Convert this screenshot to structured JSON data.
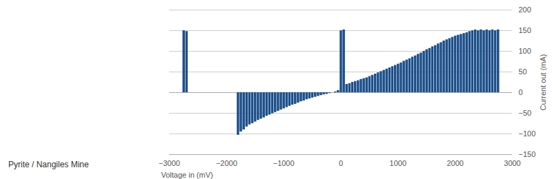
{
  "chart_data": {
    "type": "bar",
    "xlabel": "Voltage in (mV)",
    "ylabel": "Current out (mA)",
    "annotations": [
      "Pyrite / Nangiles Mine"
    ],
    "color": "#1c4f8a",
    "xlim": [
      -3000,
      3000
    ],
    "ylim": [
      -150,
      200
    ],
    "xticks": [
      -3000,
      -2000,
      -1000,
      0,
      1000,
      2000,
      3000
    ],
    "yticks": [
      -150,
      -100,
      -50,
      0,
      50,
      100,
      150,
      200
    ],
    "grid": true,
    "x": [
      -2750,
      -2700,
      -1800,
      -1750,
      -1700,
      -1650,
      -1600,
      -1550,
      -1500,
      -1450,
      -1400,
      -1350,
      -1300,
      -1250,
      -1200,
      -1150,
      -1100,
      -1050,
      -1000,
      -950,
      -900,
      -850,
      -800,
      -750,
      -700,
      -650,
      -600,
      -550,
      -500,
      -450,
      -400,
      -350,
      -300,
      -250,
      -200,
      -150,
      -100,
      -50,
      0,
      50,
      100,
      150,
      200,
      250,
      300,
      350,
      400,
      450,
      500,
      550,
      600,
      650,
      700,
      750,
      800,
      850,
      900,
      950,
      1000,
      1050,
      1100,
      1150,
      1200,
      1250,
      1300,
      1350,
      1400,
      1450,
      1500,
      1550,
      1600,
      1650,
      1700,
      1750,
      1800,
      1850,
      1900,
      1950,
      2000,
      2050,
      2100,
      2150,
      2200,
      2250,
      2300,
      2350,
      2400,
      2450,
      2500,
      2550,
      2600,
      2650,
      2700,
      2750
    ],
    "values": [
      150,
      148,
      -103,
      -95,
      -90,
      -83,
      -78,
      -75,
      -71,
      -67,
      -64,
      -61,
      -57,
      -54,
      -51,
      -48,
      -45,
      -42,
      -39,
      -36,
      -33,
      -30,
      -28,
      -25,
      -22,
      -20,
      -17,
      -15,
      -13,
      -11,
      -9,
      -7,
      -5,
      -4,
      -2,
      0,
      2,
      5,
      150,
      152,
      20,
      22,
      25,
      27,
      29,
      32,
      34,
      36,
      39,
      42,
      45,
      48,
      51,
      54,
      57,
      60,
      63,
      66,
      69,
      72,
      76,
      79,
      82,
      86,
      89,
      93,
      96,
      100,
      104,
      107,
      111,
      114,
      118,
      121,
      125,
      128,
      131,
      134,
      137,
      139,
      141,
      143,
      145,
      148,
      150,
      152,
      150,
      152,
      150,
      152,
      150,
      152,
      150,
      152
    ]
  }
}
